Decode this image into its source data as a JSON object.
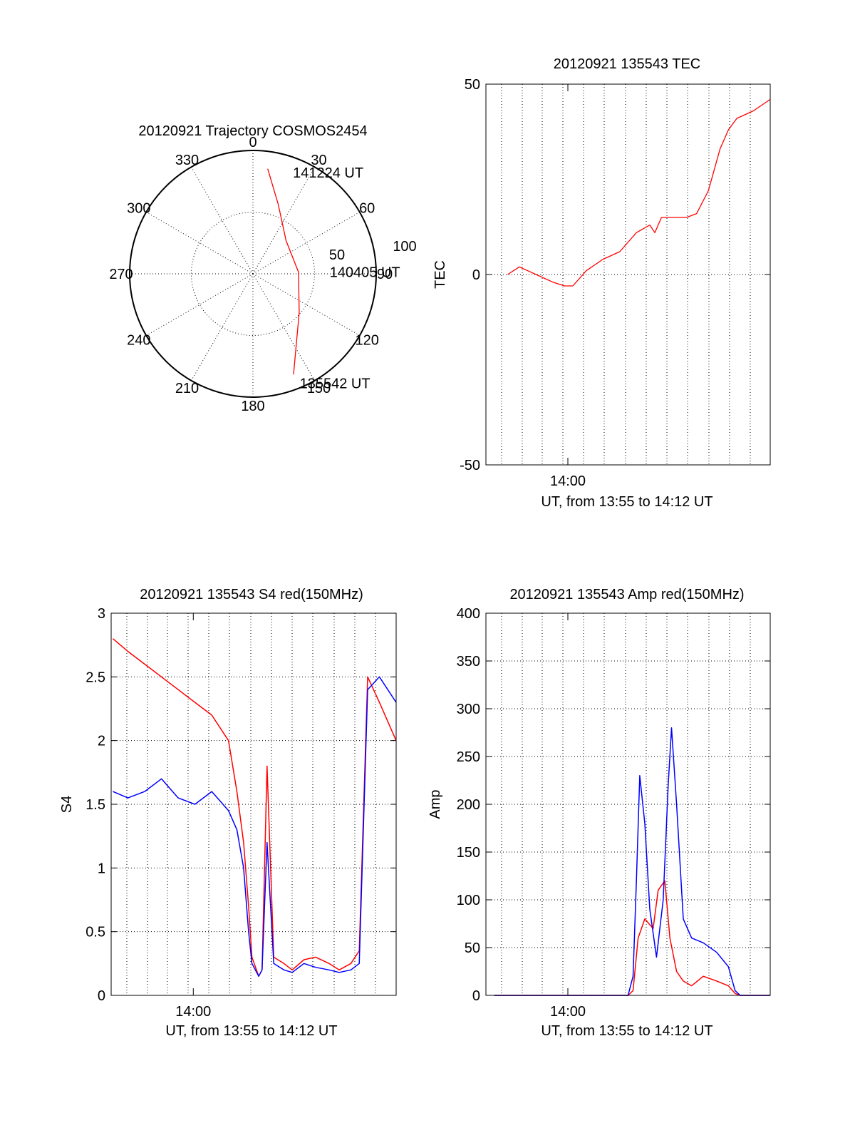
{
  "colors": {
    "red": "#ff0000",
    "blue": "#0000ff",
    "axis": "#000000"
  },
  "chart_data": [
    {
      "type": "polar",
      "title": "20120921 Trajectory COSMOS2454",
      "angle_labels": [
        "0",
        "30",
        "60",
        "90",
        "120",
        "150",
        "180",
        "210",
        "240",
        "270",
        "300",
        "330"
      ],
      "radius_labels": [
        "50",
        "100"
      ],
      "rlim": [
        0,
        100
      ],
      "grid": true,
      "series": [
        {
          "color": "red",
          "points": [
            {
              "az": 8,
              "r": 86
            },
            {
              "az": 20,
              "r": 60
            },
            {
              "az": 45,
              "r": 38
            },
            {
              "az": 88,
              "r": 37
            },
            {
              "az": 130,
              "r": 49
            },
            {
              "az": 158,
              "r": 88
            }
          ]
        }
      ],
      "annotations": [
        {
          "text": "141224 UT",
          "az": 20,
          "r": 88
        },
        {
          "text": "140405 UT",
          "az": 88,
          "r": 60
        },
        {
          "text": "135542 UT",
          "az": 158,
          "r": 95
        }
      ]
    },
    {
      "type": "line",
      "title": "20120921 135543 TEC",
      "xlabel": "UT, from 13:55 to 14:12 UT",
      "ylabel": "TEC",
      "xlim": [
        0,
        17
      ],
      "ylim": [
        -50,
        50
      ],
      "xticks": [
        {
          "x": 4.9,
          "label": "14:00"
        }
      ],
      "yticks": [
        -50,
        0,
        50
      ],
      "grid": true,
      "series": [
        {
          "color": "red",
          "x": [
            1.3,
            2.0,
            3.0,
            4.0,
            4.7,
            5.2,
            6.0,
            7.0,
            8.0,
            9.0,
            9.8,
            10.1,
            10.5,
            12.0,
            12.6,
            13.3,
            14.0,
            14.5,
            15.0,
            16.0,
            17.0
          ],
          "y": [
            0,
            2,
            0,
            -2,
            -3,
            -3,
            1,
            4,
            6,
            11,
            13,
            11,
            15,
            15,
            16,
            22,
            33,
            38,
            41,
            43,
            46
          ]
        }
      ]
    },
    {
      "type": "line",
      "title": "20120921 135543 S4 red(150MHz)",
      "xlabel": "UT, from 13:55 to 14:12 UT",
      "ylabel": "S4",
      "xlim": [
        0,
        17
      ],
      "ylim": [
        0,
        3
      ],
      "xticks": [
        {
          "x": 4.9,
          "label": "14:00"
        }
      ],
      "yticks": [
        0,
        0.5,
        1,
        1.5,
        2,
        2.5,
        3
      ],
      "yticklabels": [
        "0",
        "0.5",
        "1",
        "1.5",
        "2",
        "2.5",
        "3"
      ],
      "grid": true,
      "series": [
        {
          "color": "red",
          "x": [
            0.1,
            1.0,
            2.0,
            3.0,
            4.0,
            5.0,
            6.0,
            7.0,
            7.5,
            7.9,
            8.2,
            8.4,
            8.8,
            9.0,
            9.3,
            9.7,
            10.3,
            10.8,
            11.5,
            12.2,
            13.0,
            13.6,
            14.3,
            14.8,
            15.3,
            16.0,
            17.0
          ],
          "y": [
            2.8,
            2.7,
            2.6,
            2.5,
            2.4,
            2.3,
            2.2,
            2.0,
            1.6,
            1.2,
            0.7,
            0.3,
            0.15,
            0.2,
            1.8,
            0.3,
            0.25,
            0.2,
            0.28,
            0.3,
            0.25,
            0.2,
            0.25,
            0.35,
            2.5,
            2.3,
            2.0
          ]
        },
        {
          "color": "blue",
          "x": [
            0.1,
            1.0,
            2.0,
            3.0,
            4.0,
            5.0,
            6.0,
            7.0,
            7.5,
            7.9,
            8.2,
            8.4,
            8.8,
            9.0,
            9.3,
            9.7,
            10.3,
            10.8,
            11.5,
            12.2,
            13.0,
            13.6,
            14.3,
            14.8,
            15.3,
            16.0,
            17.0
          ],
          "y": [
            1.6,
            1.55,
            1.6,
            1.7,
            1.55,
            1.5,
            1.6,
            1.45,
            1.3,
            1.0,
            0.5,
            0.25,
            0.15,
            0.2,
            1.2,
            0.25,
            0.2,
            0.18,
            0.25,
            0.22,
            0.2,
            0.18,
            0.2,
            0.25,
            2.4,
            2.5,
            2.3
          ]
        }
      ]
    },
    {
      "type": "line",
      "title": "20120921 135543 Amp red(150MHz)",
      "xlabel": "UT, from 13:55 to 14:12 UT",
      "ylabel": "Amp",
      "xlim": [
        0,
        17
      ],
      "ylim": [
        0,
        400
      ],
      "xticks": [
        {
          "x": 4.9,
          "label": "14:00"
        }
      ],
      "yticks": [
        0,
        50,
        100,
        150,
        200,
        250,
        300,
        350,
        400
      ],
      "grid": true,
      "series": [
        {
          "color": "red",
          "x": [
            0.5,
            3.0,
            6.0,
            8.5,
            8.8,
            9.1,
            9.5,
            10.0,
            10.3,
            10.7,
            11.0,
            11.4,
            11.8,
            12.3,
            13.0,
            13.8,
            14.5,
            14.9,
            15.2,
            17.0
          ],
          "y": [
            0,
            0,
            0,
            0,
            5,
            60,
            80,
            70,
            110,
            120,
            60,
            25,
            15,
            10,
            20,
            15,
            10,
            2,
            0,
            0
          ]
        },
        {
          "color": "blue",
          "x": [
            0.5,
            3.0,
            6.0,
            8.5,
            8.8,
            9.0,
            9.2,
            9.5,
            9.8,
            10.2,
            10.6,
            10.9,
            11.1,
            11.4,
            11.8,
            12.3,
            13.0,
            13.8,
            14.5,
            14.9,
            15.2,
            17.0
          ],
          "y": [
            0,
            0,
            0,
            0,
            20,
            120,
            230,
            180,
            90,
            40,
            100,
            220,
            280,
            200,
            80,
            60,
            55,
            45,
            30,
            5,
            0,
            0
          ]
        }
      ]
    }
  ]
}
